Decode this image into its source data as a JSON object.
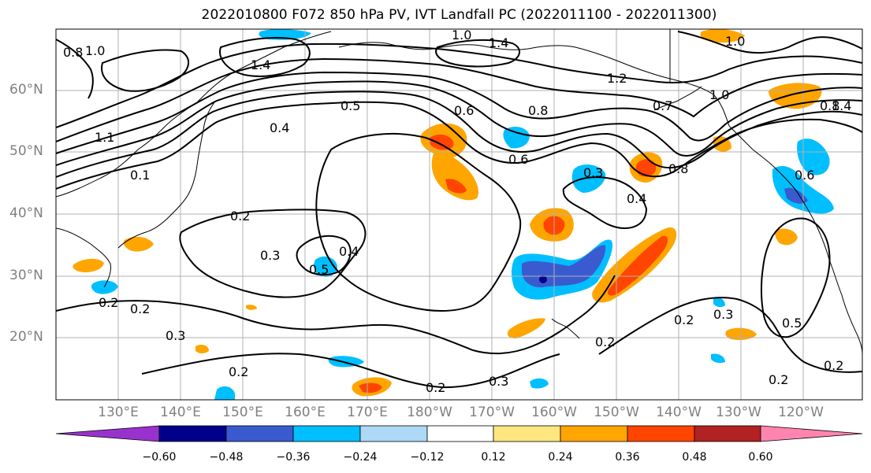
{
  "title": "2022010800 F072 850 hPa PV, IVT Landfall PC (2022011100 - 2022011300)",
  "lat_labels": [
    "60°N",
    "50°N",
    "40°N",
    "30°N",
    "20°N"
  ],
  "lon_labels": [
    "130°E",
    "140°E",
    "150°E",
    "160°E",
    "170°E",
    "180°W",
    "170°W",
    "160°W",
    "150°W",
    "140°W",
    "130°W",
    "120°W"
  ],
  "colorbar": {
    "tick_labels": [
      "−0.60",
      "−0.48",
      "−0.36",
      "−0.24",
      "−0.12",
      "0.12",
      "0.24",
      "0.36",
      "0.48",
      "0.60"
    ],
    "colors": [
      "#9932cc",
      "#00008b",
      "#3a5bd0",
      "#00bfff",
      "#add8f6",
      "#ffffff",
      "#ffe680",
      "#ffa500",
      "#ff4500",
      "#b22222",
      "#ff85b0"
    ]
  },
  "contour_labels": [
    "1.0",
    "1.4",
    "1.0",
    "0.8",
    "1.4",
    "1.0",
    "1.2",
    "1.0",
    "0.8",
    "0.6",
    "0.5",
    "0.4",
    "0.6",
    "0.8",
    "0.7",
    "0.6",
    "0.3",
    "0.4",
    "0.8",
    "0.2",
    "0.3",
    "0.4",
    "0.5",
    "0.2",
    "0.2",
    "0.3",
    "0.2",
    "0.3",
    "0.2",
    "0.2",
    "0.2",
    "0.3",
    "0.5",
    "0.2",
    "1.4",
    "0.2",
    "0.1",
    "1.1"
  ]
}
